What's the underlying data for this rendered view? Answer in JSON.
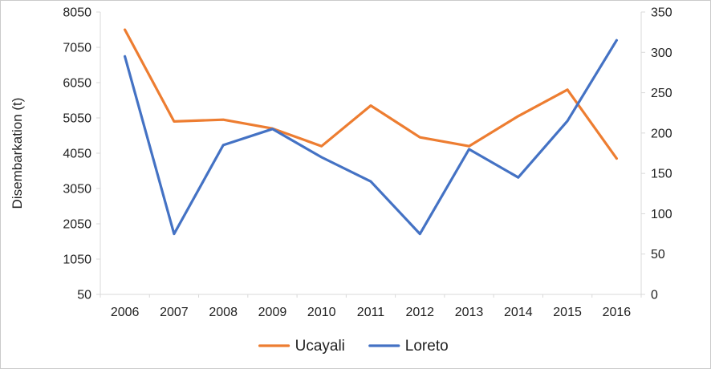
{
  "chart_data": {
    "type": "line",
    "title": "",
    "ylabel_left": "Disembarkation (t)",
    "ylabel_right": "",
    "xlabel": "",
    "categories": [
      "2006",
      "2007",
      "2008",
      "2009",
      "2010",
      "2011",
      "2012",
      "2013",
      "2014",
      "2015",
      "2016"
    ],
    "series": [
      {
        "name": "Ucayali",
        "color": "#ED7D31",
        "axis": "left",
        "values": [
          7550,
          4950,
          5000,
          4750,
          4250,
          5400,
          4500,
          4250,
          5100,
          5850,
          3900
        ]
      },
      {
        "name": "Loreto",
        "color": "#4472C4",
        "axis": "right",
        "values": [
          295,
          75,
          185,
          205,
          170,
          140,
          75,
          180,
          145,
          215,
          315
        ]
      }
    ],
    "left_axis": {
      "min": 50,
      "max": 8050,
      "step": 1000,
      "ticks": [
        50,
        1050,
        2050,
        3050,
        4050,
        5050,
        6050,
        7050,
        8050
      ]
    },
    "right_axis": {
      "min": 0,
      "max": 350,
      "step": 50,
      "ticks": [
        0,
        50,
        100,
        150,
        200,
        250,
        300,
        350
      ]
    },
    "legend": {
      "position": "bottom",
      "items": [
        {
          "label": "Ucayali",
          "color": "#ED7D31"
        },
        {
          "label": "Loreto",
          "color": "#4472C4"
        }
      ]
    },
    "grid": "off",
    "axis_line_color": "#D9D9D9",
    "tick_label_color": "#1f1f1f"
  }
}
